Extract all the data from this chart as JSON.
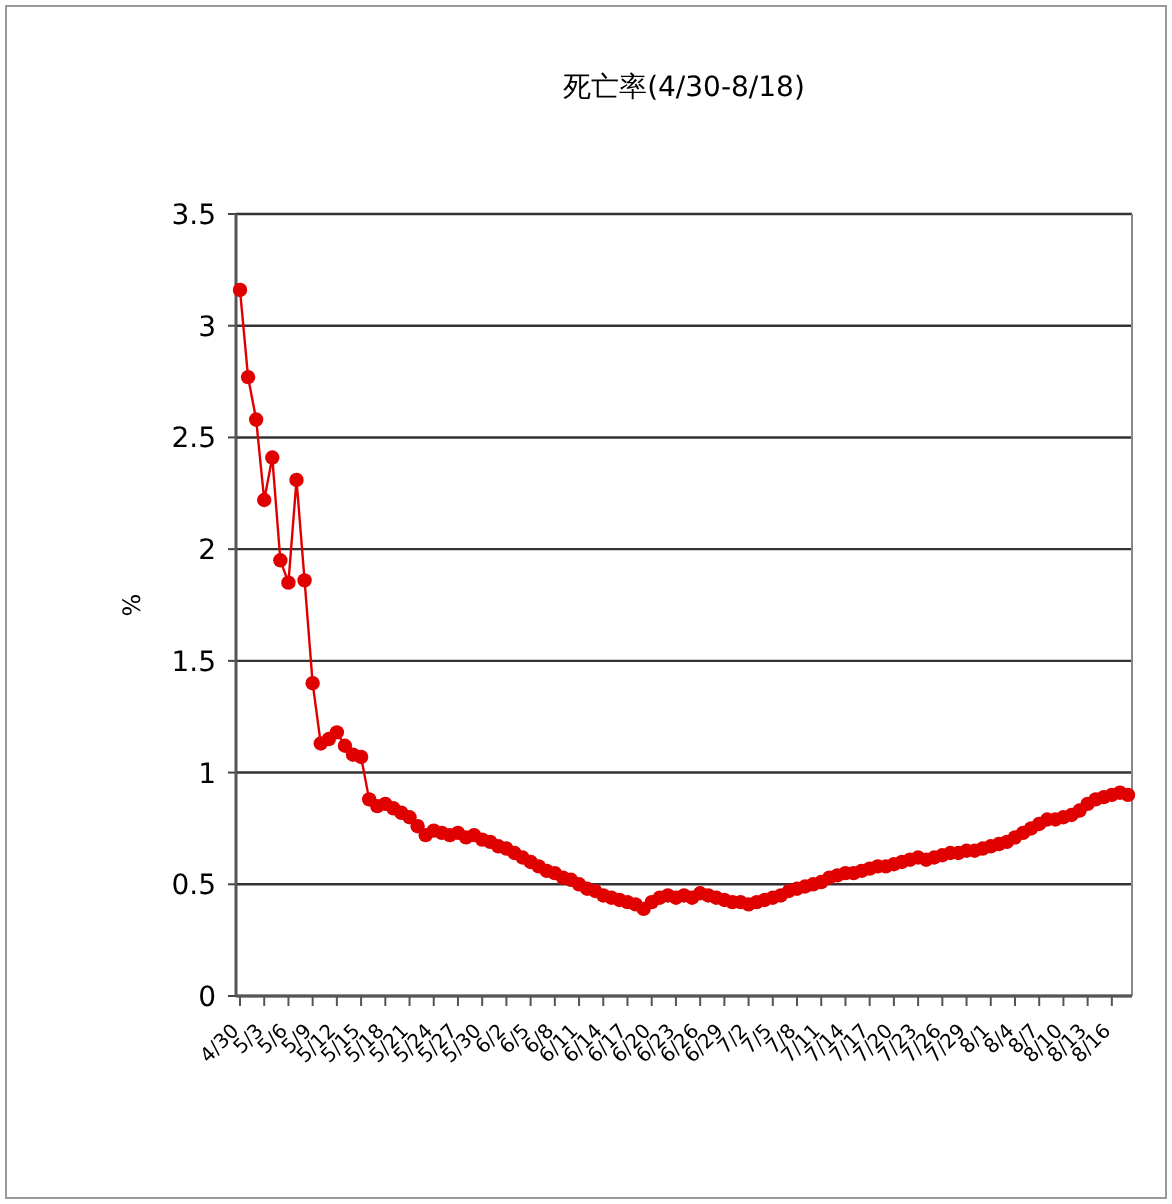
{
  "chart_data": {
    "type": "line",
    "title": "死亡率(4/30-8/18)",
    "ylabel": "%",
    "categories": [
      "4/30",
      null,
      null,
      "5/3",
      null,
      null,
      "5/6",
      null,
      null,
      "5/9",
      null,
      null,
      "5/12",
      null,
      null,
      "5/15",
      null,
      null,
      "5/18",
      null,
      null,
      "5/21",
      null,
      null,
      "5/24",
      null,
      null,
      "5/27",
      null,
      null,
      "5/30",
      null,
      null,
      "6/2",
      null,
      null,
      "6/5",
      null,
      null,
      "6/8",
      null,
      null,
      "6/11",
      null,
      null,
      "6/14",
      null,
      null,
      "6/17",
      null,
      null,
      "6/20",
      null,
      null,
      "6/23",
      null,
      null,
      "6/26",
      null,
      null,
      "6/29",
      null,
      null,
      "7/2",
      null,
      null,
      "7/5",
      null,
      null,
      "7/8",
      null,
      null,
      "7/11",
      null,
      null,
      "7/14",
      null,
      null,
      "7/17",
      null,
      null,
      "7/20",
      null,
      null,
      "7/23",
      null,
      null,
      "7/26",
      null,
      null,
      "7/29",
      null,
      null,
      "8/1",
      null,
      null,
      "8/4",
      null,
      null,
      "8/7",
      null,
      null,
      "8/10",
      null,
      null,
      "8/13",
      null,
      null,
      "8/16",
      null,
      null
    ],
    "series": [
      {
        "color": "#e00000",
        "values": [
          3.16,
          2.77,
          2.58,
          2.22,
          2.41,
          1.95,
          1.85,
          2.31,
          1.86,
          1.4,
          1.13,
          1.15,
          1.18,
          1.12,
          1.08,
          1.07,
          0.88,
          0.85,
          0.86,
          0.84,
          0.82,
          0.8,
          0.76,
          0.72,
          0.74,
          0.73,
          0.72,
          0.73,
          0.71,
          0.72,
          0.7,
          0.69,
          0.67,
          0.66,
          0.64,
          0.62,
          0.6,
          0.58,
          0.56,
          0.55,
          0.53,
          0.52,
          0.5,
          0.48,
          0.47,
          0.45,
          0.44,
          0.43,
          0.42,
          0.41,
          0.39,
          0.42,
          0.44,
          0.45,
          0.44,
          0.45,
          0.44,
          0.46,
          0.45,
          0.44,
          0.43,
          0.42,
          0.42,
          0.41,
          0.42,
          0.43,
          0.44,
          0.45,
          0.47,
          0.48,
          0.49,
          0.5,
          0.51,
          0.53,
          0.54,
          0.55,
          0.55,
          0.56,
          0.57,
          0.58,
          0.58,
          0.59,
          0.6,
          0.61,
          0.62,
          0.61,
          0.62,
          0.63,
          0.64,
          0.64,
          0.65,
          0.65,
          0.66,
          0.67,
          0.68,
          0.69,
          0.71,
          0.73,
          0.75,
          0.77,
          0.79,
          0.79,
          0.8,
          0.81,
          0.83,
          0.86,
          0.88,
          0.89,
          0.9,
          0.91,
          0.9
        ]
      }
    ],
    "ylim": [
      0,
      3.5
    ],
    "yticks": [
      0,
      0.5,
      1,
      1.5,
      2,
      2.5,
      3,
      3.5
    ],
    "grid": "y",
    "marker": "circle",
    "line_style": "solid"
  }
}
